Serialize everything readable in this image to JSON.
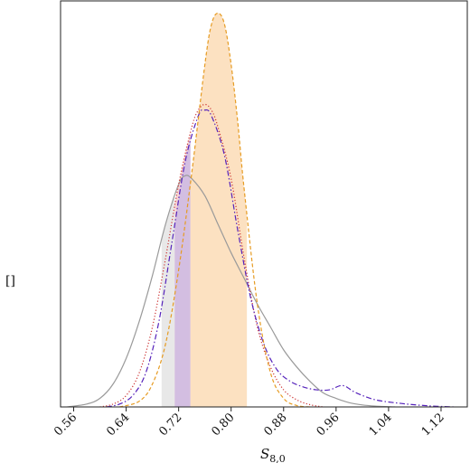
{
  "chart_data": {
    "type": "line",
    "title": "",
    "xlabel": "S",
    "xlabel_sub": "8,0",
    "ylabel": "[]",
    "xlim": [
      0.54,
      1.16
    ],
    "xticks": [
      "0.56",
      "0.64",
      "0.72",
      "0.80",
      "0.88",
      "0.96",
      "1.04",
      "1.12"
    ],
    "grid": false,
    "series": [
      {
        "style": "solid",
        "color": "#9a9a9a",
        "fill": "#e6e6e6",
        "band": [
          0.694,
          0.714
        ],
        "x": [
          0.55,
          0.58,
          0.6,
          0.62,
          0.64,
          0.66,
          0.68,
          0.7,
          0.72,
          0.73,
          0.74,
          0.76,
          0.78,
          0.8,
          0.82,
          0.84,
          0.86,
          0.88,
          0.9,
          0.92,
          0.94,
          0.96,
          0.98,
          1.0,
          1.02,
          1.05
        ],
        "y": [
          0.0,
          0.01,
          0.03,
          0.08,
          0.17,
          0.3,
          0.46,
          0.64,
          0.78,
          0.81,
          0.8,
          0.74,
          0.64,
          0.54,
          0.45,
          0.36,
          0.28,
          0.2,
          0.14,
          0.09,
          0.05,
          0.03,
          0.015,
          0.007,
          0.003,
          0.0
        ]
      },
      {
        "style": "dotted",
        "color": "#cc3333",
        "fill": "#f2c6c6",
        "band": [
          0.714,
          0.738
        ],
        "x": [
          0.6,
          0.62,
          0.64,
          0.66,
          0.68,
          0.7,
          0.72,
          0.74,
          0.75,
          0.76,
          0.77,
          0.78,
          0.8,
          0.82,
          0.84,
          0.86,
          0.88,
          0.9,
          0.92,
          0.94
        ],
        "y": [
          0.0,
          0.01,
          0.04,
          0.12,
          0.28,
          0.52,
          0.78,
          0.98,
          1.04,
          1.06,
          1.04,
          0.98,
          0.8,
          0.52,
          0.28,
          0.14,
          0.06,
          0.025,
          0.008,
          0.0
        ]
      },
      {
        "style": "dashdot",
        "color": "#5522bb",
        "fill": "#c9b8e6",
        "band": [
          0.714,
          0.738
        ],
        "x": [
          0.61,
          0.63,
          0.65,
          0.67,
          0.69,
          0.71,
          0.73,
          0.75,
          0.76,
          0.77,
          0.79,
          0.81,
          0.83,
          0.85,
          0.87,
          0.89,
          0.91,
          0.93,
          0.95,
          0.97,
          0.99,
          1.02,
          1.06,
          1.1,
          1.14
        ],
        "y": [
          0.0,
          0.01,
          0.04,
          0.12,
          0.3,
          0.58,
          0.86,
          1.02,
          1.04,
          1.02,
          0.88,
          0.62,
          0.38,
          0.22,
          0.13,
          0.09,
          0.07,
          0.06,
          0.06,
          0.075,
          0.05,
          0.025,
          0.012,
          0.004,
          0.0
        ]
      },
      {
        "style": "dashed",
        "color": "#e69b22",
        "fill": "#fbd9b0",
        "band": [
          0.738,
          0.824
        ],
        "x": [
          0.63,
          0.66,
          0.68,
          0.7,
          0.72,
          0.74,
          0.76,
          0.77,
          0.78,
          0.79,
          0.8,
          0.81,
          0.82,
          0.84,
          0.86,
          0.88,
          0.9,
          0.92
        ],
        "y": [
          0.0,
          0.02,
          0.08,
          0.22,
          0.48,
          0.82,
          1.2,
          1.34,
          1.38,
          1.34,
          1.2,
          1.0,
          0.76,
          0.36,
          0.12,
          0.03,
          0.005,
          0.0
        ]
      }
    ]
  }
}
